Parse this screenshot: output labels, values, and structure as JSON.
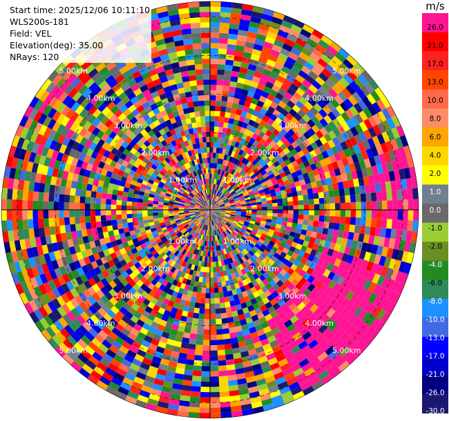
{
  "info": {
    "start_time": "Start time: 2025/12/06 10:11:10",
    "station": "WLS200s-181",
    "field": "Field: VEL",
    "elevation": "Elevation(deg): 35.00",
    "nrays": "NRays: 120"
  },
  "colorbar": {
    "unit": "m/s",
    "ticks": [
      "26.0",
      "21.0",
      "17.0",
      "13.0",
      "10.0",
      "8.0",
      "6.0",
      "4.0",
      "2.0",
      "1.0",
      "0.0",
      "-1.0",
      "-2.0",
      "-4.0",
      "-6.0",
      "-8.0",
      "-10.0",
      "-13.0",
      "-17.0",
      "-21.0",
      "-26.0",
      "-30.0"
    ],
    "colors": [
      "#ff1493",
      "#ff0000",
      "#ff2020",
      "#ff4500",
      "#ff6a4a",
      "#ff8c69",
      "#ffa500",
      "#ffd700",
      "#ffff00",
      "#708090",
      "#696969",
      "#9acd32",
      "#6b8e23",
      "#228b22",
      "#2e8b57",
      "#1e90ff",
      "#4169e1",
      "#0000ff",
      "#0000cd",
      "#000080",
      "#191970"
    ]
  },
  "range_rings_km": [
    {
      "left": "1.00km",
      "right": "1.00km"
    },
    {
      "left": "2.00km",
      "right": "2.00km"
    },
    {
      "left": "3.00km",
      "right": "3.00km"
    },
    {
      "left": "4.00km",
      "right": "4.00km"
    },
    {
      "left": "5.00km",
      "right": "5.00km"
    }
  ],
  "chart_data": {
    "type": "heatmap",
    "projection": "polar-ppi",
    "field": "VEL",
    "rays": 120,
    "max_range_km": 5.4,
    "ring_step_km": 1.0,
    "radial_bins": 40
  }
}
